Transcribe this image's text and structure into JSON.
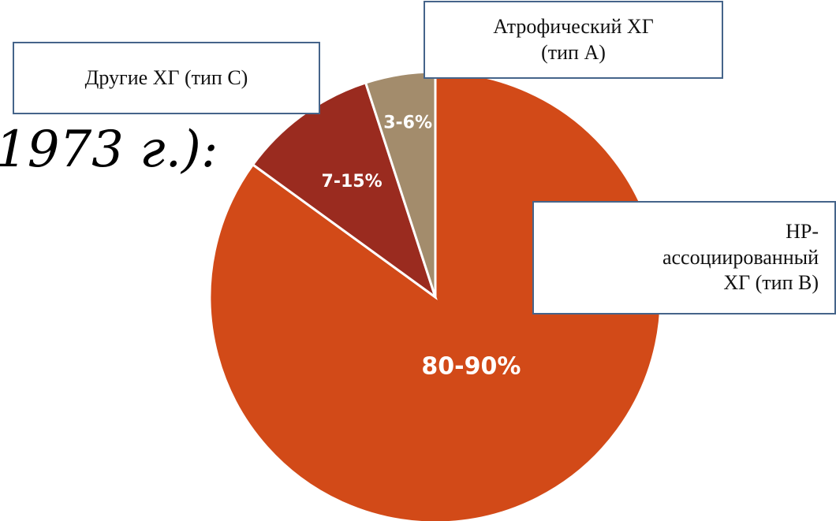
{
  "title_fragment": "1973 г.):",
  "chart_data": {
    "type": "pie",
    "title": "",
    "slices": [
      {
        "label": "HP-ассоциированный ХГ (тип В)",
        "value_label": "80-90%",
        "value": 85,
        "color": "#d24a18"
      },
      {
        "label": "Другие ХГ (тип С)",
        "value_label": "7-15%",
        "value": 10,
        "color": "#9a2b1f"
      },
      {
        "label": "Атрофический ХГ (тип А)",
        "value_label": "3-6%",
        "value": 5,
        "color": "#a38c6c"
      }
    ],
    "start_angle_deg": 0,
    "direction": "clockwise"
  },
  "callouts": {
    "other": {
      "line1": "Другие ХГ (тип С)"
    },
    "atrophic": {
      "line1": "Атрофический ХГ",
      "line2": "(тип А)"
    },
    "hp": {
      "line1": "HP-",
      "line2": "ассоциированный",
      "line3": "ХГ (тип В)"
    }
  },
  "colors": {
    "callout_border": "#45648a",
    "slice_separator": "#ffffff"
  }
}
